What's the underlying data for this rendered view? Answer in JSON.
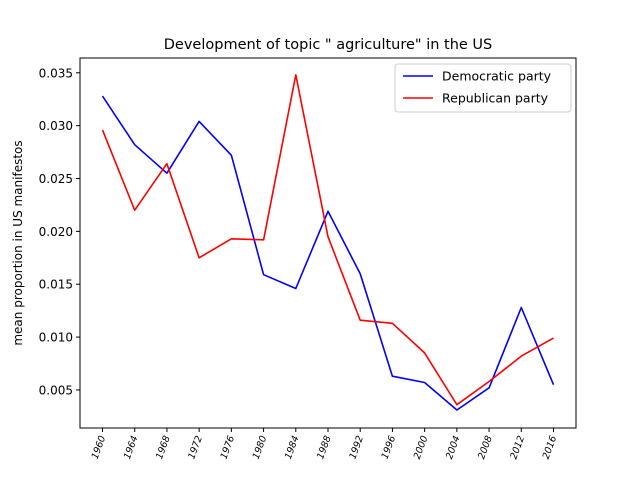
{
  "chart_data": {
    "type": "line",
    "title": "Development of topic \" agriculture\" in the US",
    "xlabel": "",
    "ylabel": "mean proportion in US manifestos",
    "categories": [
      "1960",
      "1964",
      "1968",
      "1972",
      "1976",
      "1980",
      "1984",
      "1988",
      "1992",
      "1996",
      "2000",
      "2004",
      "2008",
      "2012",
      "2016"
    ],
    "ylim": [
      0.0014,
      0.0364
    ],
    "yticks": [
      "0.005",
      "0.010",
      "0.015",
      "0.020",
      "0.025",
      "0.030",
      "0.035"
    ],
    "ytick_values": [
      0.005,
      0.01,
      0.015,
      0.02,
      0.025,
      0.03,
      0.035
    ],
    "grid": false,
    "legend_position": "top-right",
    "series": [
      {
        "name": "Democratic party",
        "color": "#0000ff",
        "values": [
          0.0328,
          0.0282,
          0.0255,
          0.0304,
          0.0272,
          0.0159,
          0.0146,
          0.0219,
          0.016,
          0.0063,
          0.0057,
          0.0031,
          0.0052,
          0.0128,
          0.0055
        ]
      },
      {
        "name": "Republican party",
        "color": "#ff0000",
        "values": [
          0.0296,
          0.022,
          0.0264,
          0.0175,
          0.0193,
          0.0192,
          0.0348,
          0.0195,
          0.0116,
          0.0113,
          0.0085,
          0.0036,
          0.0058,
          0.0082,
          0.0099
        ]
      }
    ]
  }
}
